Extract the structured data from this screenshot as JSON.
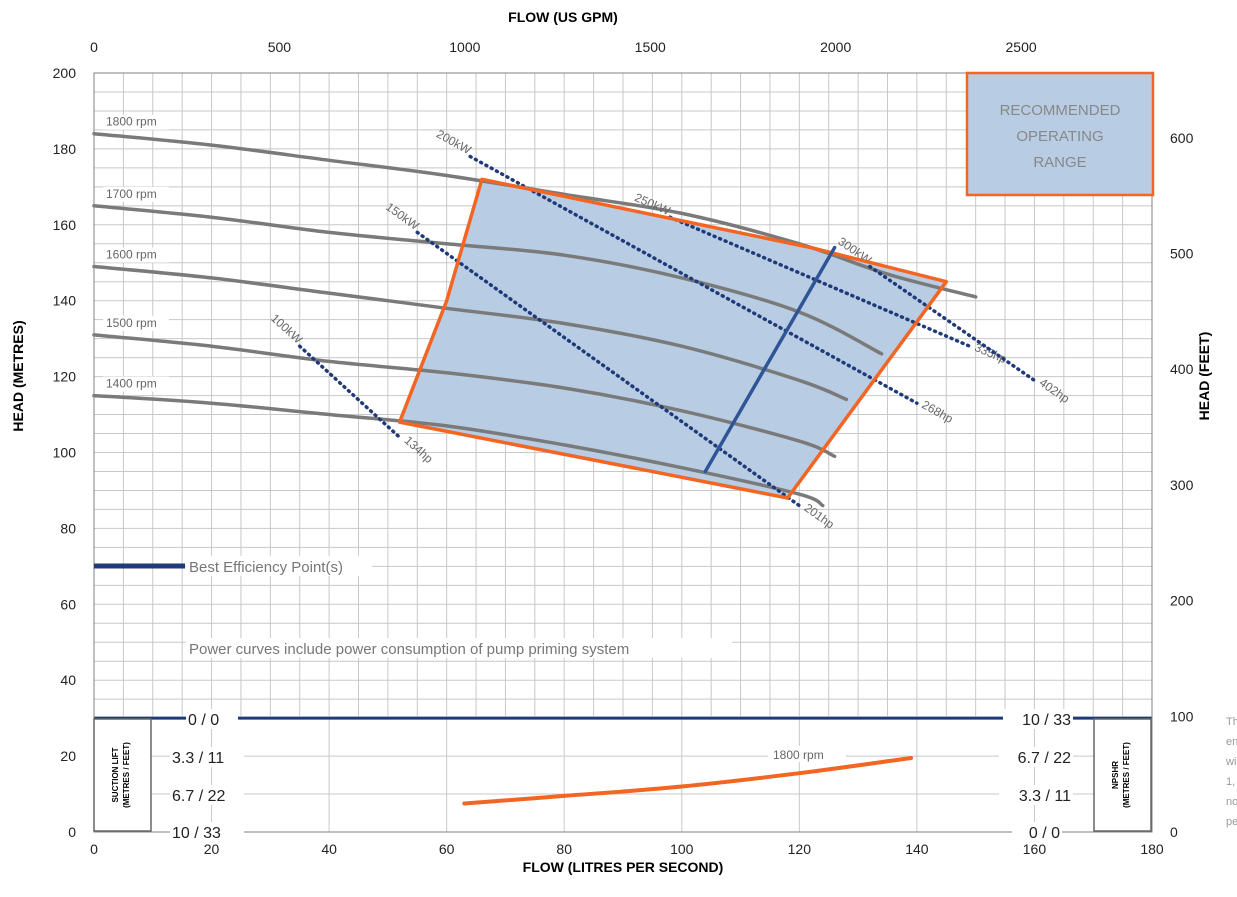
{
  "chart_data": {
    "type": "line",
    "title": "",
    "x_bottom": {
      "label": "FLOW (LITRES PER SECOND)",
      "range": [
        0,
        180
      ],
      "ticks": [
        0,
        20,
        40,
        60,
        80,
        100,
        120,
        140,
        160,
        180
      ]
    },
    "x_top": {
      "label": "FLOW (US GPM)",
      "range": [
        0,
        2853
      ],
      "ticks": [
        0,
        500,
        1000,
        1500,
        2000,
        2500
      ]
    },
    "y_left": {
      "label": "HEAD (METRES)",
      "range": [
        0,
        200
      ],
      "ticks": [
        0,
        20,
        40,
        60,
        80,
        100,
        120,
        140,
        160,
        180,
        200
      ]
    },
    "y_right": {
      "label": "HEAD (FEET)",
      "range": [
        0,
        656
      ],
      "ticks": [
        0,
        100,
        200,
        300,
        400,
        500,
        600
      ]
    },
    "grid": true,
    "speed_curves": [
      {
        "name": "1800 rpm",
        "points": [
          [
            0,
            184
          ],
          [
            20,
            181
          ],
          [
            40,
            177
          ],
          [
            60,
            173
          ],
          [
            80,
            168
          ],
          [
            100,
            163
          ],
          [
            120,
            155
          ],
          [
            135,
            147
          ],
          [
            150,
            141
          ]
        ]
      },
      {
        "name": "1700 rpm",
        "points": [
          [
            0,
            165
          ],
          [
            20,
            162
          ],
          [
            40,
            158
          ],
          [
            60,
            155
          ],
          [
            80,
            152
          ],
          [
            100,
            146
          ],
          [
            120,
            137
          ],
          [
            134,
            126
          ]
        ]
      },
      {
        "name": "1600 rpm",
        "points": [
          [
            0,
            149
          ],
          [
            20,
            146
          ],
          [
            40,
            142
          ],
          [
            60,
            138
          ],
          [
            80,
            134
          ],
          [
            100,
            128
          ],
          [
            120,
            119
          ],
          [
            128,
            114
          ]
        ]
      },
      {
        "name": "1500 rpm",
        "points": [
          [
            0,
            131
          ],
          [
            20,
            128
          ],
          [
            40,
            124
          ],
          [
            60,
            121
          ],
          [
            80,
            117
          ],
          [
            100,
            111
          ],
          [
            120,
            103
          ],
          [
            126,
            99
          ]
        ]
      },
      {
        "name": "1400 rpm",
        "points": [
          [
            0,
            115
          ],
          [
            20,
            113
          ],
          [
            40,
            110
          ],
          [
            60,
            107
          ],
          [
            80,
            102
          ],
          [
            100,
            96
          ],
          [
            120,
            89
          ],
          [
            124,
            86
          ]
        ]
      }
    ],
    "power_lines": [
      {
        "kw": "100kW",
        "hp": "134hp",
        "from": [
          35,
          128
        ],
        "to": [
          52,
          104
        ]
      },
      {
        "kw": "150kW",
        "hp": "201hp",
        "from": [
          55,
          158
        ],
        "to": [
          120,
          86
        ]
      },
      {
        "kw": "200kW",
        "hp": "268hp",
        "from": [
          64,
          178
        ],
        "to": [
          140,
          113
        ]
      },
      {
        "kw": "250kW",
        "hp": "335hp",
        "from": [
          98,
          162
        ],
        "to": [
          149,
          128
        ]
      },
      {
        "kw": "300kW",
        "hp": "402hp",
        "from": [
          132,
          149
        ],
        "to": [
          160,
          119
        ]
      }
    ],
    "operating_range": [
      [
        66,
        172
      ],
      [
        122,
        154
      ],
      [
        145,
        145
      ],
      [
        118,
        88
      ],
      [
        52,
        108
      ],
      [
        60,
        140
      ]
    ],
    "bep_line": [
      [
        104,
        95
      ],
      [
        126,
        154
      ]
    ],
    "npshr_curve": {
      "name": "1800 rpm",
      "points": [
        [
          63,
          7.5
        ],
        [
          80,
          9.5
        ],
        [
          100,
          12
        ],
        [
          120,
          15.5
        ],
        [
          139,
          19.5
        ]
      ]
    },
    "colors": {
      "speed": "#7a7a7a",
      "range_fill": "#b8cce4",
      "range_edge": "#f26522",
      "bep": "#2f5597",
      "power": "#1f3a78",
      "npshr": "#f26522",
      "divider": "#1f3a78",
      "grid": "#c8c8c8"
    }
  },
  "legend": {
    "range_box": [
      "RECOMMENDED",
      "OPERATING",
      "RANGE"
    ],
    "bep_label": "Best Efficiency Point(s)",
    "power_note": "Power curves include power consumption of pump priming system"
  },
  "suction": {
    "title_line1": "SUCTION LIFT",
    "title_line2": "(METRES / FEET)",
    "values": [
      "0 / 0",
      "3.3 / 11",
      "6.7 / 22",
      "10 / 33"
    ]
  },
  "npshr": {
    "title_line1": "NPSHR",
    "title_line2": "(METRES / FEET)",
    "values": [
      "10 / 33",
      "6.7 / 22",
      "3.3 / 11",
      "0 / 0"
    ]
  },
  "side_note": [
    "Th",
    "en",
    "wi",
    "1,",
    "no",
    "pe"
  ]
}
